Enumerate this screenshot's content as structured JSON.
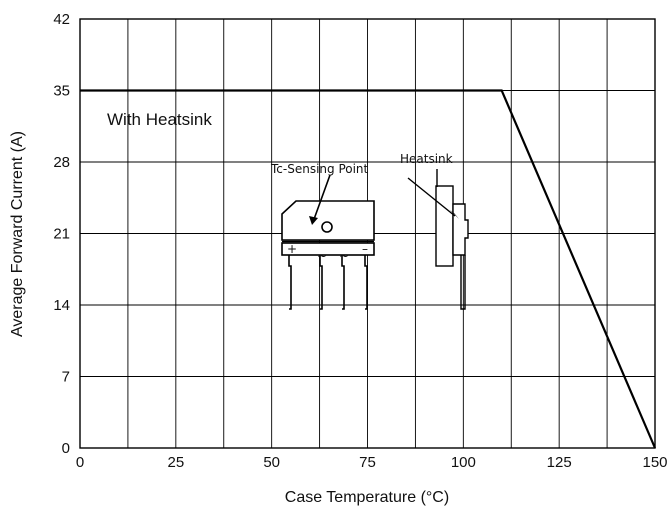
{
  "chart_data": {
    "type": "line",
    "title": "",
    "xlabel": "Case Temperature (°C)",
    "ylabel": "Average Forward Current (A)",
    "xlim": [
      0,
      150
    ],
    "ylim": [
      0,
      42
    ],
    "xticks": [
      "0",
      "25",
      "50",
      "75",
      "100",
      "125",
      "150"
    ],
    "yticks": [
      "0",
      "7",
      "14",
      "21",
      "28",
      "35",
      "42"
    ],
    "grid": true,
    "series": [
      {
        "x": [
          0,
          110,
          150
        ],
        "y": [
          35,
          35,
          0
        ]
      }
    ],
    "annotations": {
      "with_heatsink": "With Heatsink",
      "tc_sensing_point": "Tc-Sensing Point",
      "heatsink": "Heatsink",
      "pin_plus": "+",
      "pin_ac1": "~",
      "pin_ac2": "~",
      "pin_minus": "–"
    }
  }
}
